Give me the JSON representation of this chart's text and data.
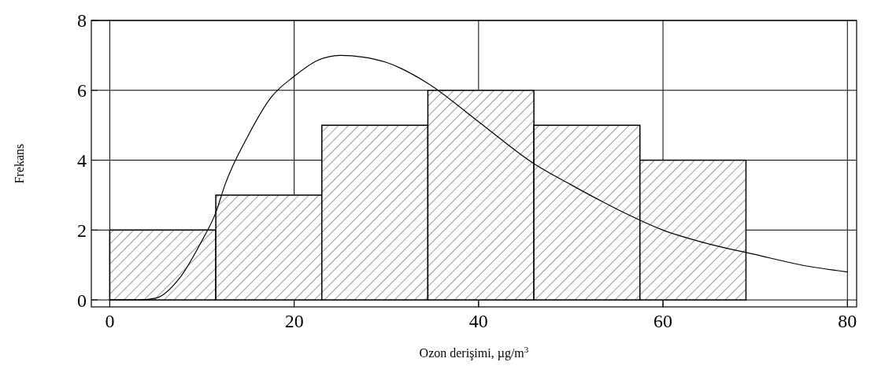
{
  "chart_data": {
    "type": "histogram",
    "xlabel": "Ozon derişimi, µg/m$^{3}$",
    "ylabel": "Frekans",
    "bins": [
      0,
      11.5,
      23,
      34.5,
      46,
      57.5,
      69
    ],
    "values": [
      2,
      3,
      5,
      6,
      5,
      4
    ],
    "color": "#000000",
    "series": [
      {
        "type": "line",
        "color": "#000000",
        "x": [
          0,
          3,
          5,
          7.5,
          10,
          11.5,
          12.5,
          15,
          17.5,
          20,
          22.5,
          25,
          27.5,
          30,
          34.5,
          40,
          46,
          50,
          55,
          60,
          65,
          70,
          75,
          80
        ],
        "values": [
          0,
          0,
          0.05,
          0.6,
          1.7,
          2.5,
          3.3,
          4.7,
          5.8,
          6.4,
          6.85,
          7,
          6.95,
          6.8,
          6.2,
          5.1,
          3.9,
          3.3,
          2.6,
          2.0,
          1.6,
          1.3,
          1.0,
          0.8
        ]
      }
    ],
    "xlim": [
      -2,
      81
    ],
    "ylim": [
      -0.2,
      8
    ],
    "xticks": [
      0,
      20,
      40,
      60,
      80
    ],
    "yticks": [
      0,
      2,
      4,
      6,
      8
    ],
    "grid": true,
    "marker": "none",
    "line_style": "solid"
  }
}
